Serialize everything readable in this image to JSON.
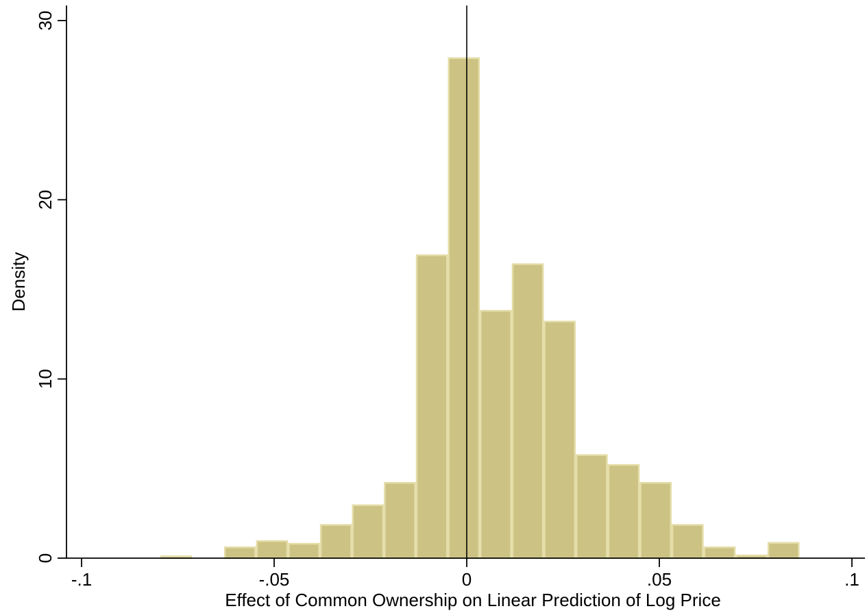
{
  "chart_data": {
    "type": "bar",
    "subtype": "histogram",
    "xlabel": "Effect of Common Ownership on Linear Prediction of Log Price",
    "ylabel": "Density",
    "xlim": [
      -0.1,
      0.1
    ],
    "ylim": [
      0,
      30
    ],
    "x_ticks": [
      -0.1,
      -0.05,
      0,
      0.05,
      0.1
    ],
    "x_tick_labels": [
      "-.1",
      "-.05",
      "0",
      ".05",
      ".1"
    ],
    "y_ticks": [
      0,
      10,
      20,
      30
    ],
    "y_tick_labels": [
      "0",
      "10",
      "20",
      "30"
    ],
    "reference_line_x": 0,
    "bin_width": 0.0083,
    "bins": [
      {
        "x0": -0.0796,
        "x1": -0.0713,
        "value": 0.15
      },
      {
        "x0": -0.063,
        "x1": -0.0547,
        "value": 0.65
      },
      {
        "x0": -0.0547,
        "x1": -0.0464,
        "value": 1.0
      },
      {
        "x0": -0.0464,
        "x1": -0.0381,
        "value": 0.85
      },
      {
        "x0": -0.0381,
        "x1": -0.0298,
        "value": 1.9
      },
      {
        "x0": -0.0298,
        "x1": -0.0215,
        "value": 3.0
      },
      {
        "x0": -0.0215,
        "x1": -0.0132,
        "value": 4.25
      },
      {
        "x0": -0.0132,
        "x1": -0.0049,
        "value": 16.95
      },
      {
        "x0": -0.0049,
        "x1": 0.0034,
        "value": 27.95
      },
      {
        "x0": 0.0034,
        "x1": 0.0117,
        "value": 13.85
      },
      {
        "x0": 0.0117,
        "x1": 0.02,
        "value": 16.45
      },
      {
        "x0": 0.02,
        "x1": 0.0283,
        "value": 13.25
      },
      {
        "x0": 0.0283,
        "x1": 0.0366,
        "value": 5.8
      },
      {
        "x0": 0.0366,
        "x1": 0.0449,
        "value": 5.25
      },
      {
        "x0": 0.0449,
        "x1": 0.0532,
        "value": 4.25
      },
      {
        "x0": 0.0532,
        "x1": 0.0615,
        "value": 1.9
      },
      {
        "x0": 0.0615,
        "x1": 0.0698,
        "value": 0.65
      },
      {
        "x0": 0.0698,
        "x1": 0.0781,
        "value": 0.2
      },
      {
        "x0": 0.0781,
        "x1": 0.0864,
        "value": 0.9
      }
    ],
    "grid": false,
    "legend": "none",
    "colors": {
      "bar_fill": "#CCC283",
      "bar_edge": "#E4DDA8",
      "axis": "#000000"
    }
  }
}
